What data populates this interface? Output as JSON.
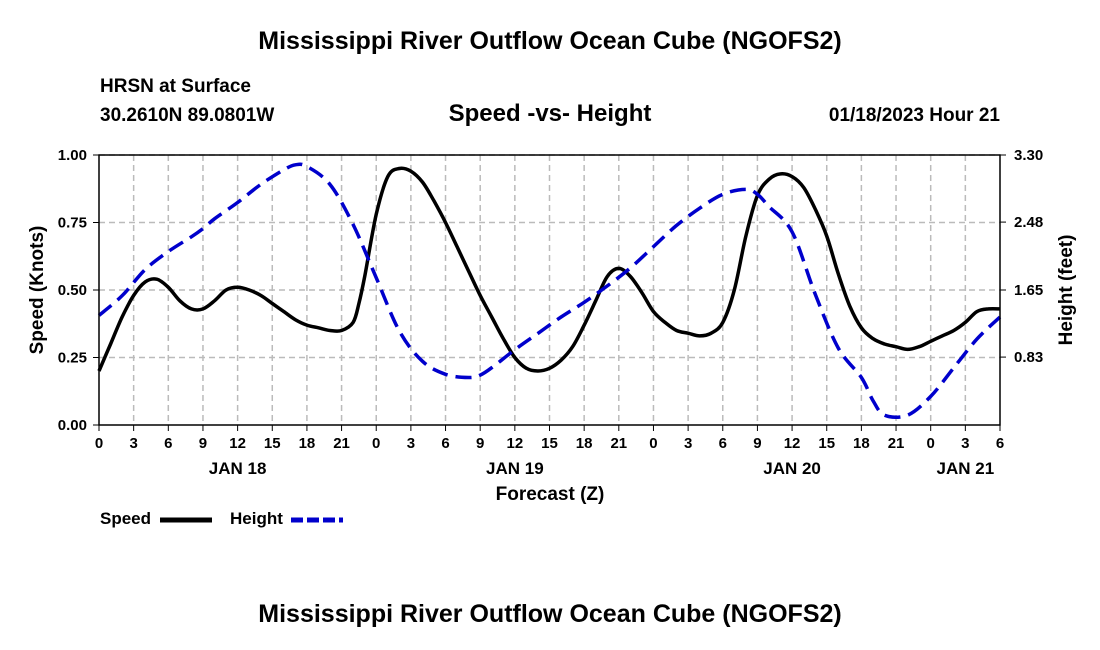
{
  "header": {
    "title": "Mississippi River Outflow Ocean Cube (NGOFS2)",
    "station": "HRSN at Surface",
    "location": "30.2610N  89.0801W",
    "subtitle": "Speed -vs- Height",
    "datetime": "01/18/2023 Hour 21"
  },
  "footer": {
    "title": "Mississippi River Outflow Ocean Cube (NGOFS2)"
  },
  "legend": {
    "speed_label": "Speed",
    "height_label": "Height"
  },
  "colors": {
    "speed": "#000000",
    "height": "#0000cc",
    "grid": "#bbbbbb"
  },
  "chart_data": {
    "type": "line",
    "xlabel": "Forecast (Z)",
    "ylabel": "Speed (Knots)",
    "y2label": "Height (feet)",
    "xlim": [
      0,
      78
    ],
    "ylim": [
      0,
      1
    ],
    "y2lim": [
      0,
      3.3
    ],
    "x_ticks": [
      0,
      3,
      6,
      9,
      12,
      15,
      18,
      21,
      24,
      27,
      30,
      33,
      36,
      39,
      42,
      45,
      48,
      51,
      54,
      57,
      60,
      63,
      66,
      69,
      72,
      75,
      78
    ],
    "x_tick_labels": [
      "0",
      "3",
      "6",
      "9",
      "12",
      "15",
      "18",
      "21",
      "0",
      "3",
      "6",
      "9",
      "12",
      "15",
      "18",
      "21",
      "0",
      "3",
      "6",
      "9",
      "12",
      "15",
      "18",
      "21",
      "0",
      "3",
      "6"
    ],
    "date_labels": [
      {
        "x": 12,
        "label": "JAN 18"
      },
      {
        "x": 36,
        "label": "JAN 19"
      },
      {
        "x": 60,
        "label": "JAN 20"
      },
      {
        "x": 75,
        "label": "JAN 21"
      }
    ],
    "y_ticks": [
      0,
      0.25,
      0.5,
      0.75,
      1.0
    ],
    "y_tick_labels": [
      "0.00",
      "0.25",
      "0.50",
      "0.75",
      "1.00"
    ],
    "y2_ticks": [
      0.83,
      1.65,
      2.48,
      3.3
    ],
    "y2_tick_labels": [
      "0.83",
      "1.65",
      "2.48",
      "3.30"
    ],
    "series": [
      {
        "name": "Speed",
        "axis": "left",
        "style": "solid",
        "x": [
          0,
          1,
          2,
          3,
          4,
          5,
          6,
          7,
          8,
          9,
          10,
          11,
          12,
          13,
          14,
          15,
          16,
          17,
          18,
          19,
          20,
          21,
          22,
          22.5,
          23,
          24,
          25,
          26,
          27,
          28,
          29,
          30,
          31,
          32,
          33,
          34,
          35,
          36,
          37,
          38,
          39,
          40,
          41,
          42,
          43,
          44,
          45,
          46,
          47,
          48,
          49,
          50,
          51,
          52,
          53,
          54,
          55,
          56,
          57,
          58,
          59,
          60,
          61,
          62,
          63,
          64,
          65,
          66,
          67,
          68,
          69,
          70,
          71,
          72,
          73,
          74,
          75,
          76,
          77,
          78
        ],
        "values": [
          0.2,
          0.3,
          0.4,
          0.48,
          0.53,
          0.54,
          0.51,
          0.46,
          0.43,
          0.43,
          0.46,
          0.5,
          0.51,
          0.5,
          0.48,
          0.45,
          0.42,
          0.39,
          0.37,
          0.36,
          0.35,
          0.35,
          0.38,
          0.45,
          0.55,
          0.78,
          0.92,
          0.95,
          0.94,
          0.9,
          0.83,
          0.75,
          0.66,
          0.57,
          0.48,
          0.4,
          0.32,
          0.25,
          0.21,
          0.2,
          0.21,
          0.24,
          0.29,
          0.37,
          0.46,
          0.55,
          0.58,
          0.55,
          0.49,
          0.42,
          0.38,
          0.35,
          0.34,
          0.33,
          0.34,
          0.38,
          0.5,
          0.7,
          0.85,
          0.91,
          0.93,
          0.92,
          0.88,
          0.8,
          0.7,
          0.56,
          0.44,
          0.36,
          0.32,
          0.3,
          0.29,
          0.28,
          0.29,
          0.31,
          0.33,
          0.35,
          0.38,
          0.42,
          0.43,
          0.43
        ]
      },
      {
        "name": "Height",
        "axis": "right",
        "style": "dashed",
        "x": [
          0,
          2,
          4,
          6,
          8,
          9,
          10,
          12,
          14,
          16,
          17,
          18,
          20,
          22,
          24,
          26,
          28,
          30,
          32,
          33,
          34,
          36,
          38,
          40,
          42,
          44,
          46,
          48,
          50,
          52,
          54,
          56,
          57,
          58,
          60,
          62,
          64,
          66,
          67,
          68,
          70,
          72,
          74,
          76,
          78
        ],
        "values": [
          1.34,
          1.58,
          1.9,
          2.12,
          2.3,
          2.4,
          2.52,
          2.72,
          2.94,
          3.12,
          3.18,
          3.16,
          2.94,
          2.45,
          1.8,
          1.15,
          0.78,
          0.62,
          0.58,
          0.61,
          0.7,
          0.92,
          1.12,
          1.32,
          1.5,
          1.7,
          1.92,
          2.18,
          2.44,
          2.65,
          2.82,
          2.88,
          2.82,
          2.67,
          2.36,
          1.6,
          0.94,
          0.58,
          0.3,
          0.12,
          0.12,
          0.35,
          0.7,
          1.05,
          1.32
        ]
      }
    ]
  }
}
